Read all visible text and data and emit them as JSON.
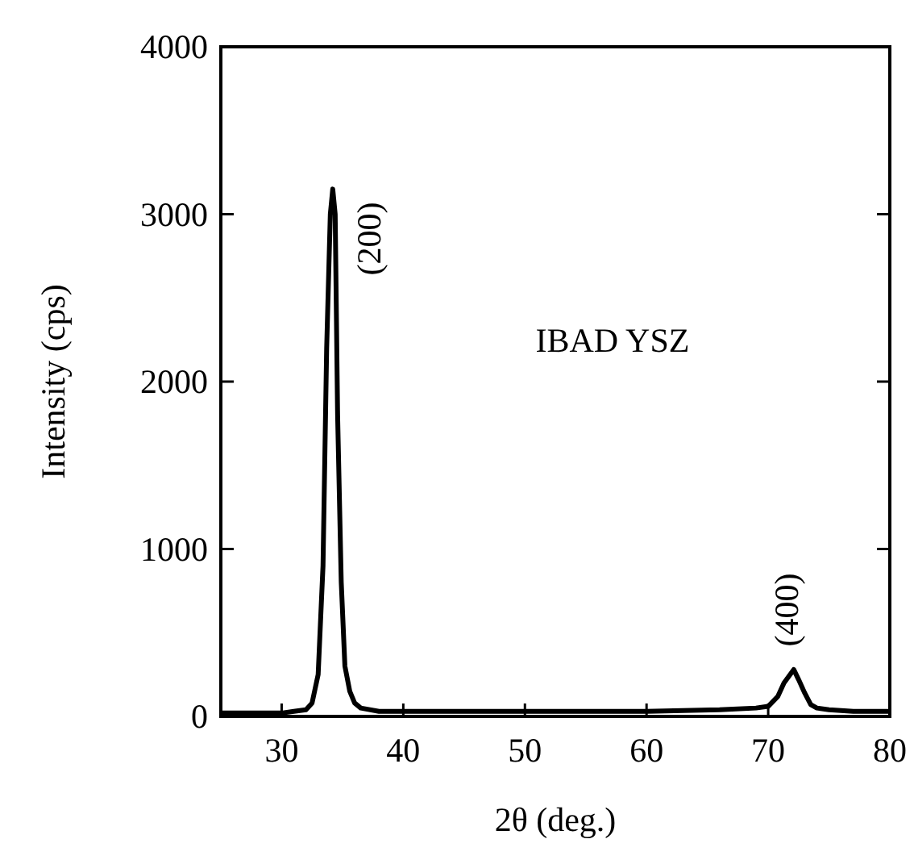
{
  "chart_data": {
    "type": "line",
    "xlabel": "2θ (deg.)",
    "ylabel": "Intensity (cps)",
    "xlim": [
      25,
      80
    ],
    "ylim": [
      0,
      4000
    ],
    "xticks": [
      30,
      40,
      50,
      60,
      70,
      80
    ],
    "yticks": [
      0,
      1000,
      2000,
      3000,
      4000
    ],
    "grid": false,
    "line_style": "solid",
    "series": [
      {
        "color": "#000000",
        "x": [
          25,
          28,
          30,
          31,
          32,
          32.5,
          33,
          33.4,
          33.7,
          34,
          34.2,
          34.4,
          34.6,
          34.9,
          35.2,
          35.6,
          36,
          36.5,
          38,
          42,
          50,
          60,
          66,
          69,
          70,
          70.8,
          71.3,
          71.7,
          72.1,
          72.5,
          73,
          73.5,
          74,
          75,
          77,
          80
        ],
        "values": [
          20,
          20,
          20,
          30,
          40,
          80,
          250,
          900,
          2200,
          3000,
          3150,
          3000,
          1800,
          800,
          300,
          150,
          80,
          50,
          30,
          30,
          30,
          30,
          40,
          50,
          60,
          120,
          200,
          240,
          280,
          220,
          140,
          70,
          50,
          40,
          30,
          30
        ]
      }
    ],
    "annotations": [
      "(200)",
      "(400)",
      "IBAD YSZ"
    ]
  }
}
